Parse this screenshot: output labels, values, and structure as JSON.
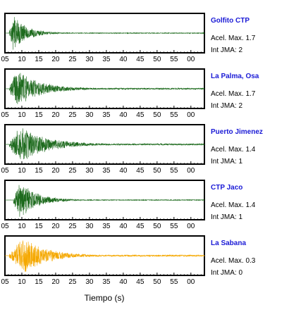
{
  "chart_data": {
    "type": "line",
    "xlabel": "Tiempo (s)",
    "x_tick_labels": [
      "05",
      "10",
      "15",
      "20",
      "25",
      "30",
      "35",
      "40",
      "45",
      "50",
      "55",
      "00"
    ],
    "xlim": [
      5,
      64
    ],
    "info_label_prefixes": {
      "accel": "Acel. Max.",
      "intensity": "Int JMA:"
    },
    "series": [
      {
        "name": "Golfito CTP",
        "accel_max": "1.7",
        "int_jma": "2",
        "color": "#1e6b1e",
        "onset_s": 6.3,
        "peak_s": 7.5,
        "decay_s": 4.0,
        "tail_amp": 0.02
      },
      {
        "name": "La Palma, Osa",
        "accel_max": "1.7",
        "int_jma": "2",
        "color": "#1e6b1e",
        "onset_s": 6.3,
        "peak_s": 8.5,
        "decay_s": 7.0,
        "tail_amp": 0.04
      },
      {
        "name": "Puerto Jimenez",
        "accel_max": "1.4",
        "int_jma": "1",
        "color": "#1e6b1e",
        "onset_s": 6.3,
        "peak_s": 9.5,
        "decay_s": 8.0,
        "tail_amp": 0.04
      },
      {
        "name": "CTP Jaco",
        "accel_max": "1.4",
        "int_jma": "1",
        "color": "#1e6b1e",
        "onset_s": 7.5,
        "peak_s": 9.5,
        "decay_s": 5.0,
        "tail_amp": 0.02
      },
      {
        "name": "La Sabana",
        "accel_max": "0.3",
        "int_jma": "0",
        "color": "#f5a800",
        "onset_s": 6.3,
        "peak_s": 10.5,
        "decay_s": 7.0,
        "tail_amp": 0.04
      }
    ]
  }
}
